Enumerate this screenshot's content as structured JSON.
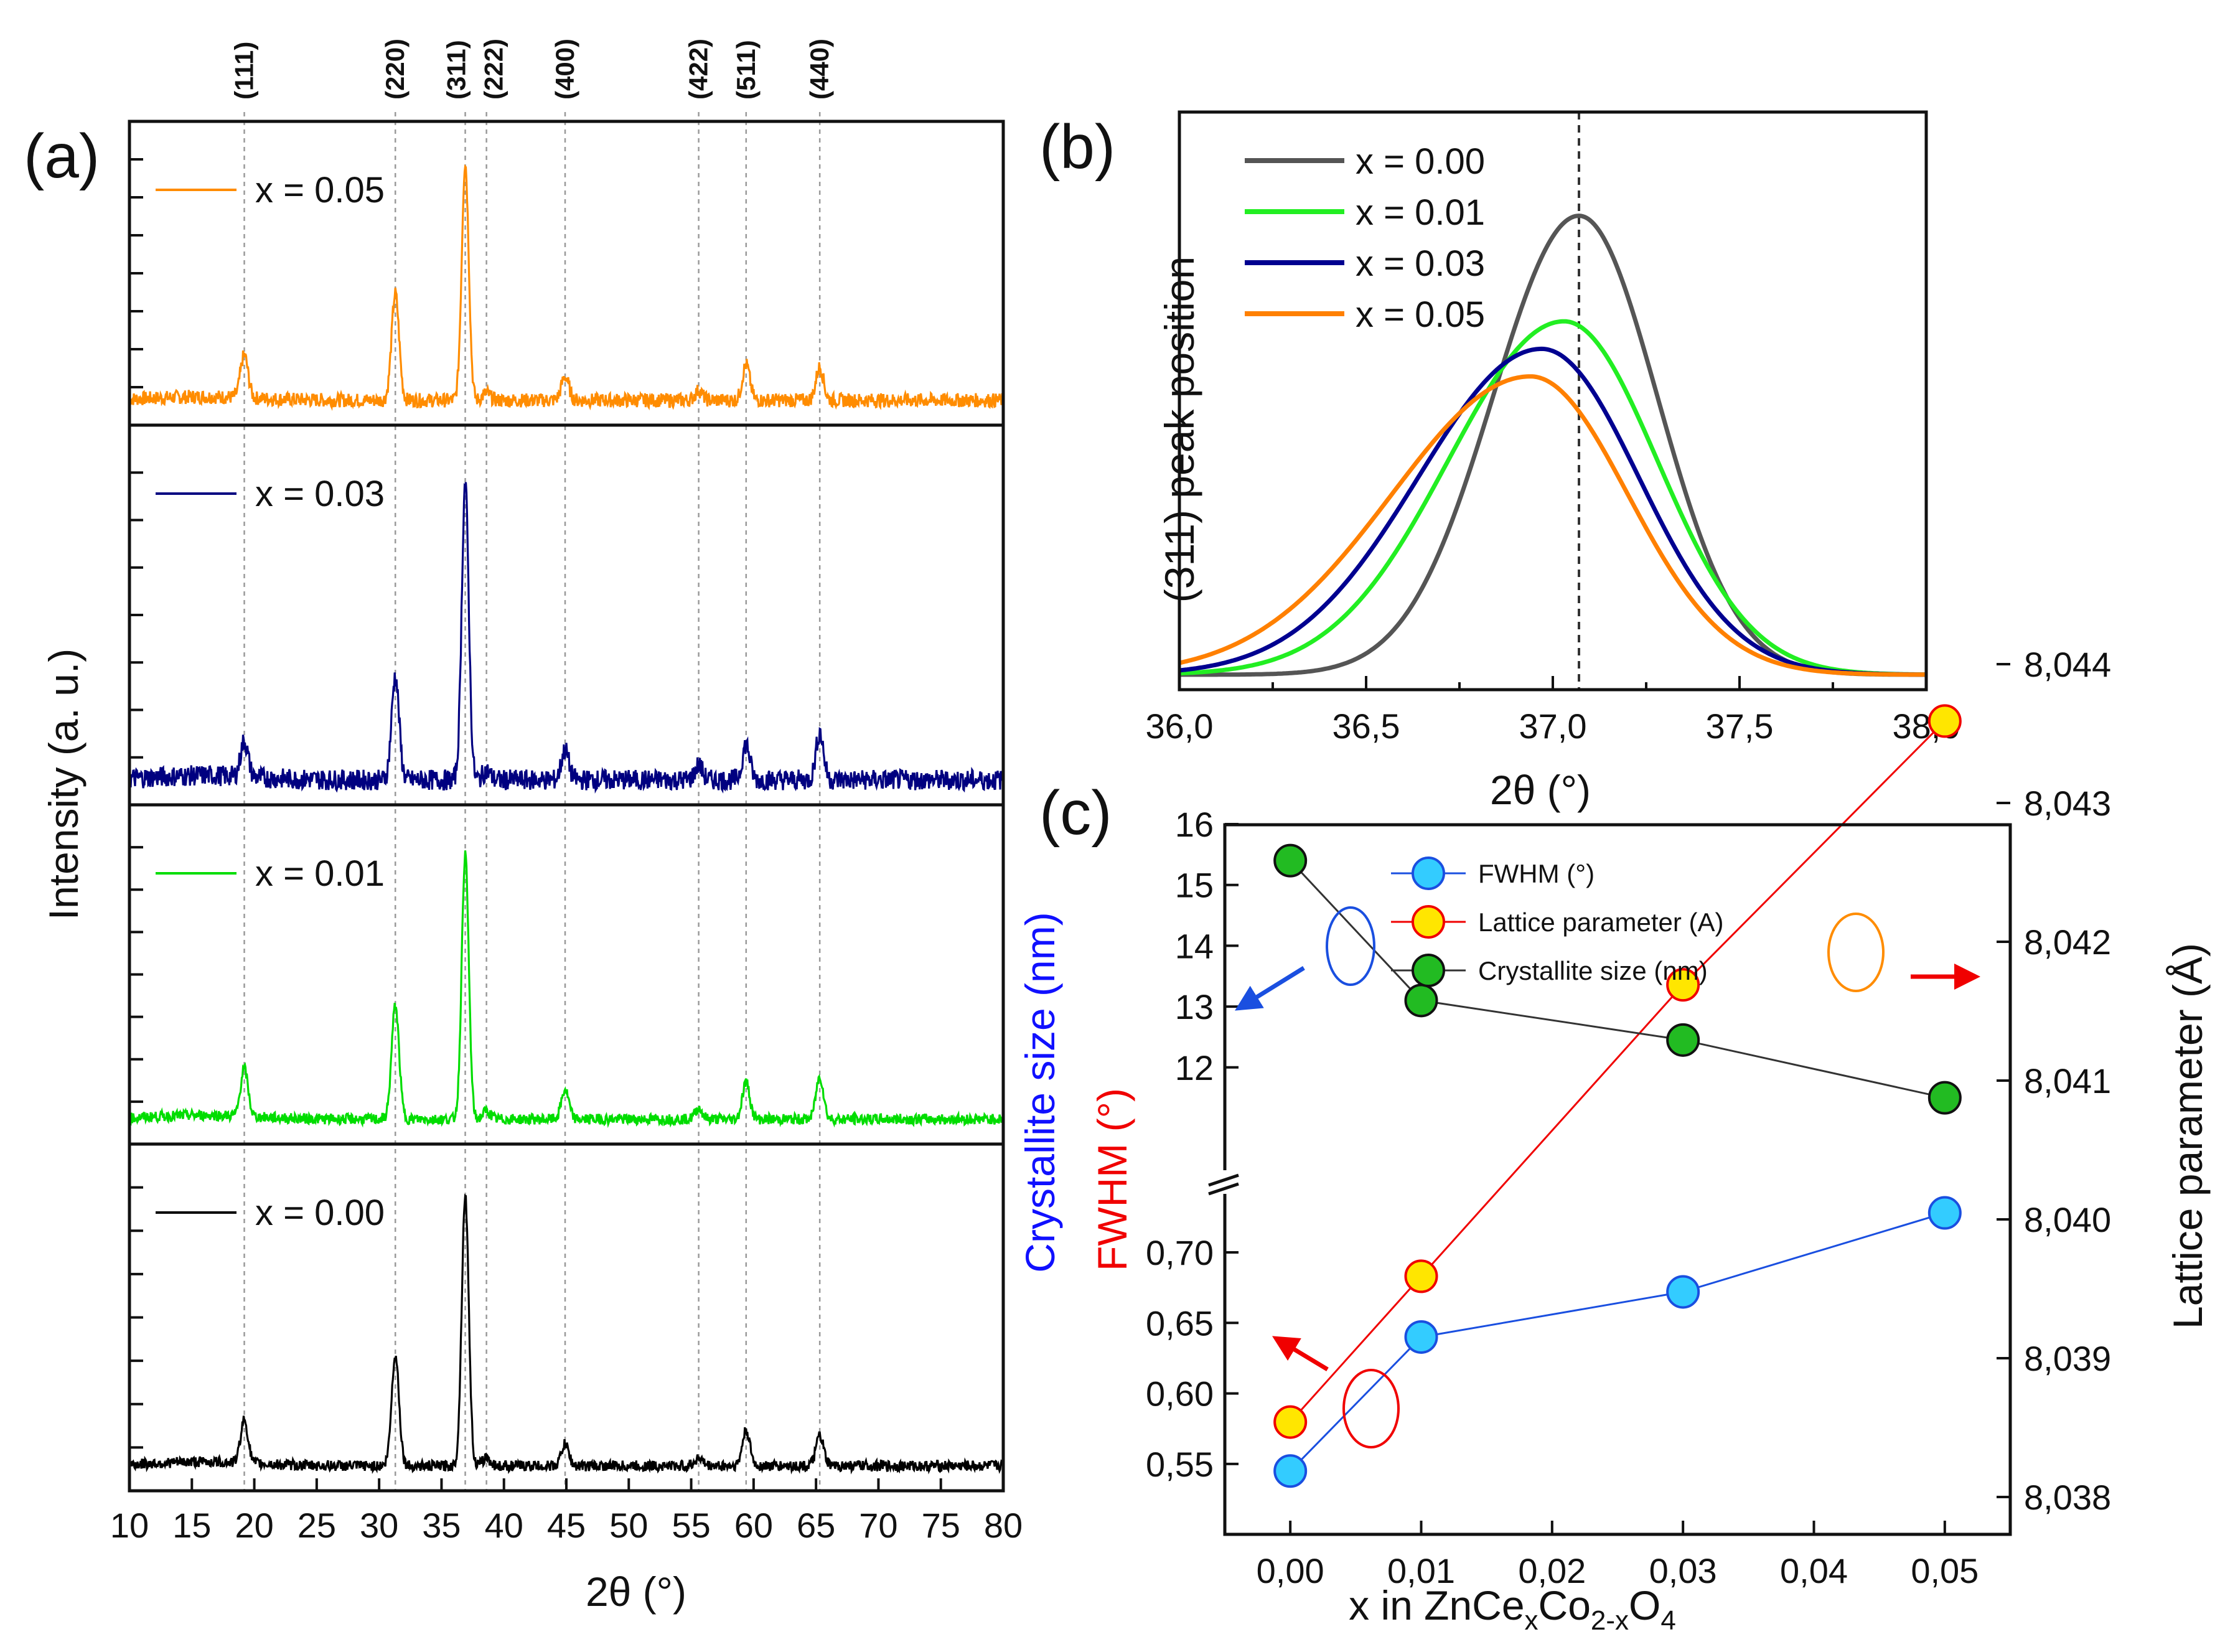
{
  "chart_data": [
    {
      "id": "a",
      "type": "line",
      "panel_label": "(a)",
      "xlabel": "2θ (°)",
      "ylabel": "Intensity (a. u.)",
      "xlim": [
        10,
        80
      ],
      "xticks": [
        10,
        15,
        20,
        25,
        30,
        35,
        40,
        45,
        50,
        55,
        60,
        65,
        70,
        75,
        80
      ],
      "reflections": [
        {
          "label": "(111)",
          "position": 19.2
        },
        {
          "label": "(220)",
          "position": 31.3
        },
        {
          "label": "(311)",
          "position": 36.9
        },
        {
          "label": "(222)",
          "position": 38.6
        },
        {
          "label": "(400)",
          "position": 44.9
        },
        {
          "label": "(422)",
          "position": 55.6
        },
        {
          "label": "(511)",
          "position": 59.4
        },
        {
          "label": "(440)",
          "position": 65.3
        }
      ],
      "series": [
        {
          "name": "x = 0.05",
          "color": "#FF8C00",
          "peak_heights": [
            0.18,
            0.45,
            1.0,
            0.03,
            0.1,
            0.04,
            0.15,
            0.14
          ],
          "noise": 0.03
        },
        {
          "name": "x = 0.03",
          "color": "#000080",
          "peak_heights": [
            0.12,
            0.35,
            1.0,
            0.03,
            0.1,
            0.05,
            0.12,
            0.16
          ],
          "noise": 0.035
        },
        {
          "name": "x = 0.01",
          "color": "#00DD00",
          "peak_heights": [
            0.18,
            0.43,
            1.0,
            0.03,
            0.11,
            0.04,
            0.14,
            0.16
          ],
          "noise": 0.02
        },
        {
          "name": "x = 0.00",
          "color": "#000000",
          "peak_heights": [
            0.16,
            0.41,
            1.0,
            0.03,
            0.08,
            0.03,
            0.13,
            0.11
          ],
          "noise": 0.02
        }
      ]
    },
    {
      "id": "b",
      "type": "line",
      "panel_label": "(b)",
      "xlabel": "2θ (°)",
      "ylabel": "(311) peak position",
      "xlim": [
        36.0,
        38.0
      ],
      "ylim": [
        0,
        1.1
      ],
      "xticks": [
        "36,0",
        "36,5",
        "37,0",
        "37,5",
        "38,0"
      ],
      "reference_line_x": 37.07,
      "series": [
        {
          "name": "x = 0.00",
          "color": "#555555",
          "center": 37.07,
          "height": 1.0,
          "width_left": 0.23,
          "width_right": 0.21
        },
        {
          "name": "x = 0.01",
          "color": "#22EE22",
          "center": 37.03,
          "height": 0.77,
          "width_left": 0.31,
          "width_right": 0.25
        },
        {
          "name": "x = 0.03",
          "color": "#000090",
          "center": 36.97,
          "height": 0.71,
          "width_left": 0.33,
          "width_right": 0.26
        },
        {
          "name": "x = 0.05",
          "color": "#FF8000",
          "center": 36.94,
          "height": 0.65,
          "width_left": 0.37,
          "width_right": 0.26
        }
      ]
    },
    {
      "id": "c",
      "type": "scatter",
      "panel_label": "(c)",
      "xlabel": "x in ZnCe",
      "xlabel_parts": {
        "x_sub": "x",
        "co": "Co",
        "co_sub": "2-x",
        "o": "O",
        "o_sub": "4"
      },
      "ylabel_left_blue": "Crystallite size (nm)",
      "ylabel_left_red": "FWHM (°)",
      "ylabel_right": "Lattice parameter (Å)",
      "x": [
        0.0,
        0.01,
        0.03,
        0.05
      ],
      "xticks": [
        "0,00",
        "0,01",
        "0,02",
        "0,03",
        "0,04",
        "0,05"
      ],
      "y_left_upper_ticks": [
        "12",
        "13",
        "14",
        "15",
        "16"
      ],
      "y_left_lower_ticks": [
        "0,55",
        "0,60",
        "0,65",
        "0,70"
      ],
      "y_right_ticks": [
        "8,038",
        "8,039",
        "8,040",
        "8,041",
        "8,042",
        "8,043",
        "8,044"
      ],
      "ylim_right": [
        8.038,
        8.044
      ],
      "series": [
        {
          "name": "FWHM (°)",
          "axis": "left_lower",
          "values": [
            0.545,
            0.64,
            0.672,
            0.728
          ],
          "fill": "#33CCFF",
          "edge": "#1A4FE0",
          "line": "#1A4FE0"
        },
        {
          "name": "Lattice parameter (A)",
          "axis": "right",
          "values": [
            8.03854,
            8.03959,
            8.04169,
            8.04359
          ],
          "fill": "#FFE600",
          "edge": "#F00000",
          "line": "#F00000"
        },
        {
          "name": "Crystallite size (nm)",
          "axis": "left_upper",
          "values": [
            15.4,
            13.1,
            12.45,
            11.5
          ],
          "fill": "#22BB22",
          "edge": "#111111",
          "line": "#333333"
        }
      ]
    }
  ]
}
